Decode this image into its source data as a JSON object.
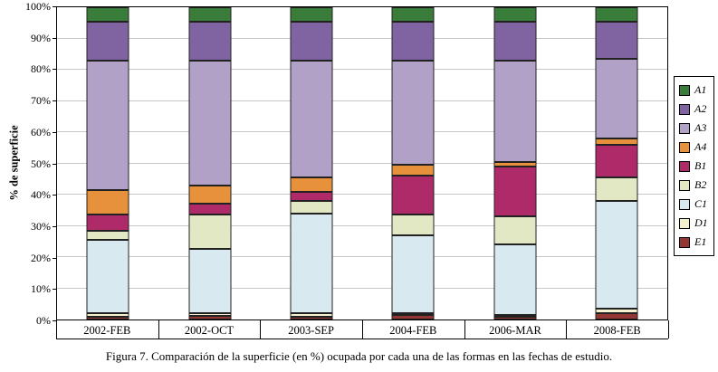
{
  "chart_data": {
    "type": "bar",
    "subtype": "stacked-100",
    "title": "",
    "ylabel": "% de superficie",
    "xlabel": "",
    "ylim": [
      0,
      100
    ],
    "grid": true,
    "legend_position": "right",
    "y_ticks": [
      "0%",
      "10%",
      "20%",
      "30%",
      "40%",
      "50%",
      "60%",
      "70%",
      "80%",
      "90%",
      "100%"
    ],
    "categories": [
      "2002-FEB",
      "2002-OCT",
      "2003-SEP",
      "2004-FEB",
      "2006-MAR",
      "2008-FEB"
    ],
    "series": [
      {
        "name": "A1",
        "color": "#3a7c39",
        "values": [
          4.5,
          4.5,
          4.5,
          4.5,
          4.5,
          4.5
        ]
      },
      {
        "name": "A2",
        "color": "#8064a2",
        "values": [
          12.5,
          12.5,
          12.5,
          12.5,
          12.5,
          12
        ]
      },
      {
        "name": "A3",
        "color": "#b2a1c7",
        "values": [
          41.5,
          40,
          37.5,
          33.5,
          32.5,
          25.5
        ]
      },
      {
        "name": "A4",
        "color": "#e8913d",
        "values": [
          8,
          6,
          4.5,
          3.5,
          1.5,
          2
        ]
      },
      {
        "name": "B1",
        "color": "#ae2a68",
        "values": [
          5,
          3.5,
          3,
          12.5,
          16,
          10.5
        ]
      },
      {
        "name": "B2",
        "color": "#e3e8c4",
        "values": [
          3,
          11,
          4,
          6.5,
          9,
          7.5
        ]
      },
      {
        "name": "C1",
        "color": "#d9e9f0",
        "values": [
          23.5,
          20.5,
          32,
          25,
          22.5,
          34.5
        ]
      },
      {
        "name": "D1",
        "color": "#f6f2cf",
        "values": [
          1,
          1,
          1,
          0.5,
          0.5,
          1.5
        ]
      },
      {
        "name": "E1",
        "color": "#943634",
        "values": [
          1,
          1,
          1,
          1.5,
          1,
          2
        ]
      }
    ]
  },
  "caption": "Figura 7. Comparación de la superficie (en %) ocupada por cada una de las formas en las fechas de estudio."
}
